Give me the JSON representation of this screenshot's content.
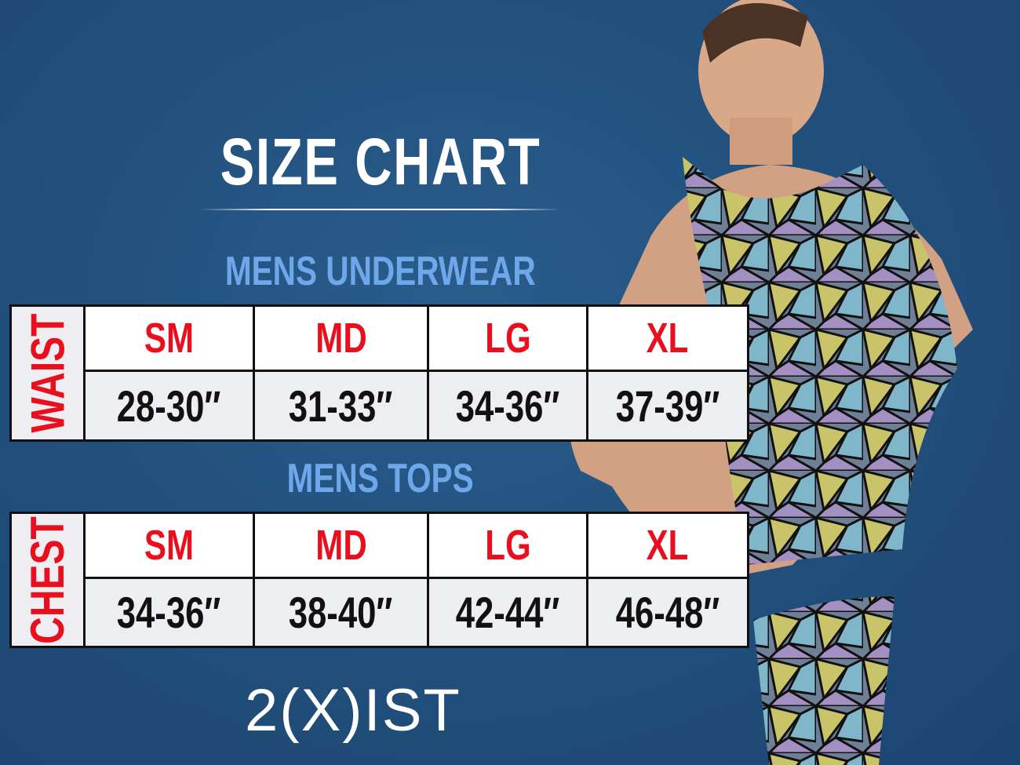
{
  "title": "SIZE CHART",
  "underwear": {
    "heading": "MENS UNDERWEAR",
    "measure": "WAIST",
    "sizes": [
      "SM",
      "MD",
      "LG",
      "XL"
    ],
    "values": [
      "28-30″",
      "31-33″",
      "34-36″",
      "37-39″"
    ]
  },
  "tops": {
    "heading": "MENS TOPS",
    "measure": "CHEST",
    "sizes": [
      "SM",
      "MD",
      "LG",
      "XL"
    ],
    "values": [
      "34-36″",
      "38-40″",
      "42-44″",
      "46-48″"
    ]
  },
  "brand": "2(X)IST",
  "colors": {
    "background": "#22507c",
    "size_label": "#e8101e",
    "section_heading": "#6fa8ea",
    "value_text": "#111111"
  }
}
